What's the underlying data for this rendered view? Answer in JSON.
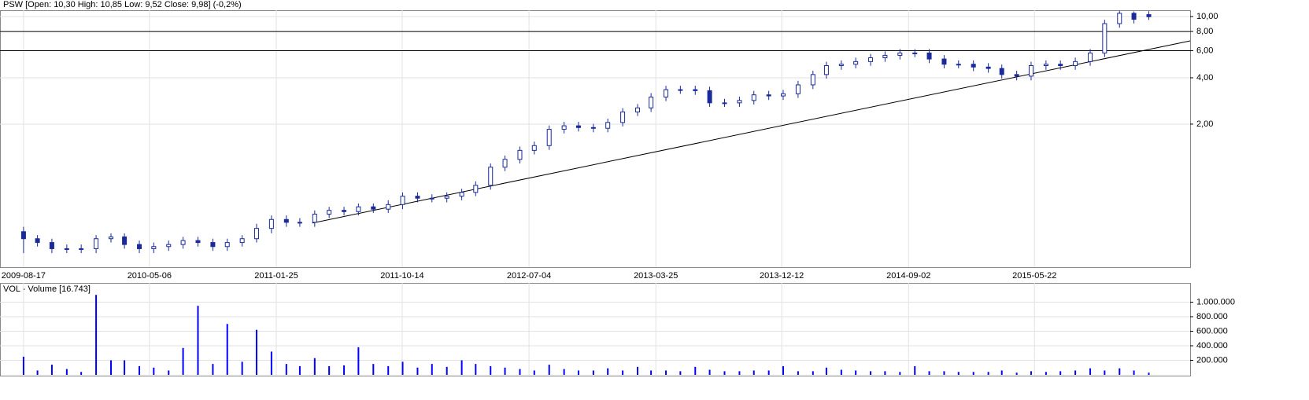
{
  "chart_data": [
    {
      "type": "candlestick",
      "title": "PSW [Open: 10,30  High: 10,85  Low: 9,52  Close: 9,98] (-0,2%)",
      "log": true,
      "grid": true,
      "color": "#1a2a9a",
      "x": [
        "2009-08-17",
        "2009-09-15",
        "2009-10-15",
        "2009-11-15",
        "2009-12-15",
        "2010-01-15",
        "2010-02-15",
        "2010-03-15",
        "2010-04-15",
        "2010-05-15",
        "2010-06-15",
        "2010-07-15",
        "2010-08-15",
        "2010-09-15",
        "2010-10-15",
        "2010-11-15",
        "2010-12-15",
        "2011-01-15",
        "2011-02-15",
        "2011-03-15",
        "2011-04-15",
        "2011-05-15",
        "2011-06-15",
        "2011-07-15",
        "2011-08-15",
        "2011-09-15",
        "2011-10-15",
        "2011-11-15",
        "2011-12-15",
        "2012-01-15",
        "2012-02-15",
        "2012-03-15",
        "2012-04-15",
        "2012-05-15",
        "2012-06-15",
        "2012-07-15",
        "2012-08-15",
        "2012-09-15",
        "2012-10-15",
        "2012-11-15",
        "2012-12-15",
        "2013-01-15",
        "2013-02-15",
        "2013-03-15",
        "2013-04-15",
        "2013-05-15",
        "2013-06-15",
        "2013-07-15",
        "2013-08-15",
        "2013-09-15",
        "2013-10-15",
        "2013-11-15",
        "2013-12-15",
        "2014-01-15",
        "2014-02-15",
        "2014-03-15",
        "2014-04-15",
        "2014-05-15",
        "2014-06-15",
        "2014-07-15",
        "2014-08-15",
        "2014-09-15",
        "2014-10-15",
        "2014-11-15",
        "2014-12-15",
        "2015-01-15",
        "2015-02-15",
        "2015-03-15",
        "2015-04-15",
        "2015-05-15",
        "2015-06-15",
        "2015-07-15",
        "2015-08-15",
        "2015-09-15",
        "2015-10-15",
        "2015-11-15",
        "2015-12-15",
        "2016-01-15"
      ],
      "open": [
        0.4,
        0.36,
        0.34,
        0.31,
        0.31,
        0.31,
        0.36,
        0.37,
        0.33,
        0.31,
        0.32,
        0.33,
        0.35,
        0.34,
        0.32,
        0.34,
        0.36,
        0.42,
        0.48,
        0.46,
        0.46,
        0.52,
        0.55,
        0.54,
        0.58,
        0.56,
        0.6,
        0.68,
        0.66,
        0.66,
        0.68,
        0.72,
        0.8,
        1.05,
        1.18,
        1.35,
        1.45,
        1.85,
        1.95,
        1.9,
        1.88,
        2.05,
        2.4,
        2.55,
        3.0,
        3.35,
        3.35,
        3.3,
        2.75,
        2.75,
        2.85,
        3.1,
        3.05,
        3.15,
        3.6,
        4.2,
        4.8,
        4.9,
        5.1,
        5.4,
        5.6,
        5.8,
        5.8,
        5.3,
        4.9,
        4.9,
        4.7,
        4.6,
        4.2,
        4.1,
        4.8,
        4.9,
        4.8,
        5.1,
        5.8,
        9.0,
        10.5,
        10.3
      ],
      "high": [
        0.43,
        0.38,
        0.36,
        0.33,
        0.33,
        0.38,
        0.39,
        0.39,
        0.35,
        0.34,
        0.35,
        0.37,
        0.37,
        0.36,
        0.36,
        0.38,
        0.45,
        0.51,
        0.51,
        0.49,
        0.55,
        0.58,
        0.58,
        0.61,
        0.61,
        0.64,
        0.72,
        0.72,
        0.7,
        0.72,
        0.76,
        0.85,
        1.11,
        1.25,
        1.43,
        1.54,
        1.96,
        2.07,
        2.07,
        2.01,
        2.17,
        2.54,
        2.7,
        3.18,
        3.55,
        3.55,
        3.55,
        3.5,
        2.92,
        3.02,
        3.29,
        3.29,
        3.34,
        3.82,
        4.45,
        5.09,
        5.19,
        5.41,
        5.72,
        5.94,
        6.15,
        6.15,
        6.15,
        5.62,
        5.19,
        5.19,
        4.98,
        4.88,
        4.45,
        5.09,
        5.19,
        5.19,
        5.41,
        6.15,
        9.54,
        10.9,
        10.8,
        10.85
      ],
      "low": [
        0.29,
        0.32,
        0.29,
        0.29,
        0.29,
        0.29,
        0.34,
        0.31,
        0.29,
        0.29,
        0.3,
        0.31,
        0.32,
        0.3,
        0.3,
        0.32,
        0.34,
        0.39,
        0.43,
        0.43,
        0.43,
        0.49,
        0.51,
        0.51,
        0.53,
        0.53,
        0.56,
        0.62,
        0.62,
        0.62,
        0.64,
        0.68,
        0.75,
        0.99,
        1.11,
        1.27,
        1.36,
        1.74,
        1.79,
        1.77,
        1.77,
        1.93,
        2.26,
        2.4,
        2.82,
        3.15,
        3.1,
        2.59,
        2.59,
        2.59,
        2.68,
        2.87,
        2.87,
        2.96,
        3.38,
        3.95,
        4.51,
        4.61,
        4.79,
        5.08,
        5.26,
        5.45,
        4.98,
        4.61,
        4.61,
        4.42,
        4.32,
        3.95,
        3.85,
        3.85,
        4.51,
        4.51,
        4.51,
        4.79,
        5.45,
        8.46,
        9.02,
        9.52
      ],
      "close": [
        0.36,
        0.34,
        0.31,
        0.31,
        0.31,
        0.36,
        0.37,
        0.33,
        0.31,
        0.32,
        0.33,
        0.35,
        0.34,
        0.32,
        0.34,
        0.36,
        0.42,
        0.48,
        0.46,
        0.46,
        0.52,
        0.55,
        0.54,
        0.58,
        0.56,
        0.6,
        0.68,
        0.66,
        0.66,
        0.68,
        0.72,
        0.8,
        1.05,
        1.18,
        1.35,
        1.45,
        1.85,
        1.95,
        1.9,
        1.88,
        2.05,
        2.4,
        2.55,
        3.0,
        3.35,
        3.35,
        3.3,
        2.75,
        2.75,
        2.85,
        3.1,
        3.05,
        3.15,
        3.6,
        4.2,
        4.8,
        4.9,
        5.1,
        5.4,
        5.6,
        5.8,
        5.8,
        5.3,
        4.9,
        4.9,
        4.7,
        4.6,
        4.2,
        4.1,
        4.8,
        4.9,
        4.8,
        5.1,
        5.8,
        9.0,
        10.5,
        9.6,
        9.98
      ],
      "xlim": [
        "2009-06-29",
        "2016-04-10"
      ],
      "xticks": [
        "2009-08-17",
        "2010-05-06",
        "2011-01-25",
        "2011-10-14",
        "2012-07-04",
        "2013-03-25",
        "2013-12-12",
        "2014-09-02",
        "2015-05-22"
      ],
      "ylim": [
        0.235,
        11
      ],
      "yticks": [
        {
          "value": 2,
          "label": "2,00"
        },
        {
          "value": 4,
          "label": "4,00"
        },
        {
          "value": 6,
          "label": "6,00"
        },
        {
          "value": 8,
          "label": "8,00"
        },
        {
          "value": 10,
          "label": "10,00"
        }
      ],
      "hlines": [
        8,
        6
      ],
      "trendline": {
        "x": [
          "2011-04-10",
          "2016-04-10"
        ],
        "y": [
          0.455,
          6.95
        ]
      }
    },
    {
      "type": "bar",
      "title": "VOL - Volume [16.743]",
      "color": "#0000ff",
      "values": [
        250000,
        60000,
        140000,
        80000,
        40000,
        1100000,
        200000,
        200000,
        120000,
        100000,
        60000,
        370000,
        950000,
        150000,
        700000,
        180000,
        620000,
        320000,
        150000,
        120000,
        230000,
        120000,
        130000,
        380000,
        150000,
        120000,
        180000,
        100000,
        150000,
        110000,
        200000,
        150000,
        120000,
        100000,
        80000,
        60000,
        140000,
        80000,
        60000,
        60000,
        90000,
        60000,
        110000,
        60000,
        60000,
        50000,
        110000,
        70000,
        50000,
        50000,
        60000,
        60000,
        120000,
        50000,
        50000,
        100000,
        70000,
        60000,
        50000,
        50000,
        40000,
        120000,
        50000,
        50000,
        40000,
        40000,
        40000,
        60000,
        30000,
        50000,
        40000,
        50000,
        60000,
        90000,
        60000,
        90000,
        60000,
        30000
      ],
      "ylim": [
        0,
        1265000
      ],
      "yticks": [
        {
          "value": 200000,
          "label": "200.000"
        },
        {
          "value": 400000,
          "label": "400.000"
        },
        {
          "value": 600000,
          "label": "600.000"
        },
        {
          "value": 800000,
          "label": "800.000"
        },
        {
          "value": 1000000,
          "label": "1.000.000"
        }
      ]
    }
  ]
}
